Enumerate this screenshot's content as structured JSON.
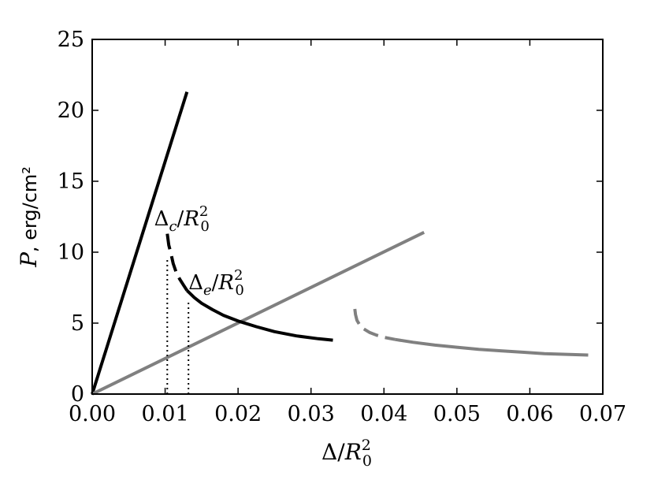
{
  "chart_data": {
    "type": "line",
    "xlabel": {
      "symbol": "Δ",
      "denom": "R",
      "sub": "0",
      "sup": "2"
    },
    "ylabel": {
      "symbol": "P",
      "unit": ", erg/cm²"
    },
    "xlim": [
      0.0,
      0.07
    ],
    "ylim": [
      0,
      25
    ],
    "xticks": [
      0.0,
      0.01,
      0.02,
      0.03,
      0.04,
      0.05,
      0.06,
      0.07
    ],
    "xtick_labels": [
      "0.00",
      "0.01",
      "0.02",
      "0.03",
      "0.04",
      "0.05",
      "0.06",
      "0.07"
    ],
    "yticks": [
      0,
      5,
      10,
      15,
      20,
      25
    ],
    "ytick_labels": [
      "0",
      "5",
      "10",
      "15",
      "20",
      "25"
    ],
    "grid": false,
    "colors": {
      "black": "#000000",
      "gray": "#808080"
    },
    "series": [
      {
        "color": "#000000",
        "style": "solid",
        "x": [
          0.0,
          0.013
        ],
        "y": [
          0.0,
          21.3
        ]
      },
      {
        "color": "#808080",
        "style": "solid",
        "x": [
          0.0,
          0.0455
        ],
        "y": [
          0.0,
          11.4
        ]
      },
      {
        "color": "#000000",
        "style": "dashed",
        "x": [
          0.0103,
          0.0105,
          0.0108,
          0.0111,
          0.0115,
          0.012,
          0.0125,
          0.013
        ],
        "y": [
          11.3,
          10.5,
          9.9,
          9.2,
          8.6,
          8.1,
          7.7,
          7.3
        ]
      },
      {
        "color": "#000000",
        "style": "solid",
        "x": [
          0.013,
          0.014,
          0.015,
          0.0165,
          0.018,
          0.02,
          0.0225,
          0.025,
          0.028,
          0.031,
          0.033
        ],
        "y": [
          7.3,
          6.8,
          6.4,
          5.95,
          5.55,
          5.15,
          4.75,
          4.4,
          4.1,
          3.9,
          3.8
        ]
      },
      {
        "color": "#808080",
        "style": "dashed",
        "x": [
          0.036,
          0.0361,
          0.0363,
          0.0367,
          0.0372,
          0.038,
          0.039,
          0.04,
          0.0415
        ],
        "y": [
          6.0,
          5.6,
          5.2,
          4.85,
          4.6,
          4.35,
          4.15,
          4.0,
          3.85
        ]
      },
      {
        "color": "#808080",
        "style": "solid",
        "x": [
          0.0415,
          0.044,
          0.047,
          0.05,
          0.053,
          0.056,
          0.059,
          0.062,
          0.065,
          0.068
        ],
        "y": [
          3.85,
          3.65,
          3.45,
          3.3,
          3.15,
          3.05,
          2.95,
          2.85,
          2.8,
          2.75
        ]
      },
      {
        "color": "#000000",
        "style": "dotted",
        "x": [
          0.0103,
          0.0103
        ],
        "y": [
          0.0,
          9.5
        ]
      },
      {
        "color": "#000000",
        "style": "dotted",
        "x": [
          0.0132,
          0.0132
        ],
        "y": [
          0.0,
          6.6
        ]
      }
    ],
    "annotations": [
      {
        "symbol": "Δ",
        "sub_sym": "c",
        "denom": "R",
        "sub": "0",
        "sup": "2",
        "x": 0.0085,
        "y": 11.9
      },
      {
        "symbol": "Δ",
        "sub_sym": "e",
        "denom": "R",
        "sub": "0",
        "sup": "2",
        "x": 0.0132,
        "y": 7.4
      }
    ]
  }
}
